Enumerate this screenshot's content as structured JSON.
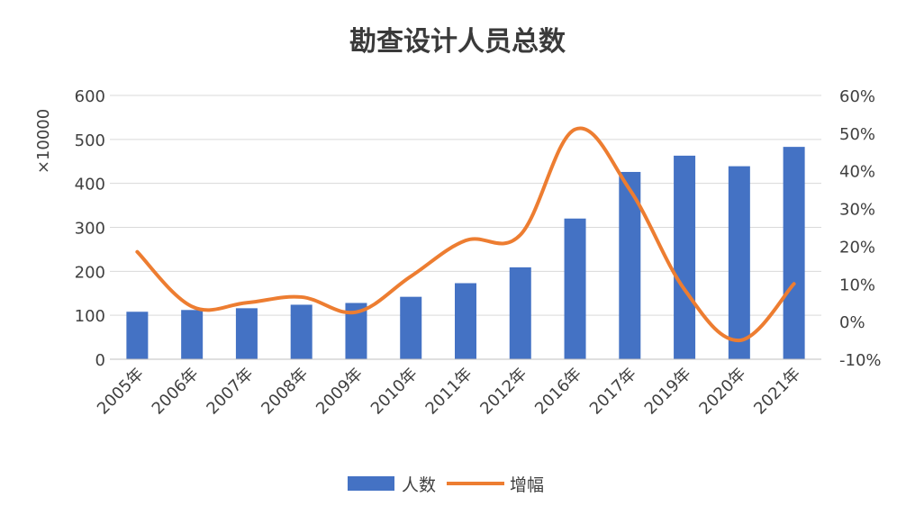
{
  "chart_data": {
    "type": "bar",
    "title": "勘查设计人员总数",
    "ylabel": "×10000",
    "categories": [
      "2005年",
      "2006年",
      "2007年",
      "2008年",
      "2009年",
      "2010年",
      "2011年",
      "2012年",
      "2016年",
      "2017年",
      "2019年",
      "2020年",
      "2021年"
    ],
    "series": [
      {
        "name": "人数",
        "type": "bar",
        "axis": "left",
        "color": "#4472c4",
        "values": [
          108,
          112,
          116,
          124,
          128,
          142,
          173,
          209,
          320,
          426,
          463,
          439,
          483
        ]
      },
      {
        "name": "增幅",
        "type": "line",
        "axis": "right",
        "color": "#ed7d31",
        "values": [
          18.5,
          4,
          5,
          6.5,
          2.5,
          12,
          21.5,
          23,
          51,
          35,
          8.5,
          -5,
          10
        ]
      }
    ],
    "ylim_left": [
      0,
      600
    ],
    "yticks_left": [
      "0",
      "100",
      "200",
      "300",
      "400",
      "500",
      "600"
    ],
    "ylim_right": [
      -10,
      60
    ],
    "yticks_right": [
      "-10%",
      "0%",
      "10%",
      "20%",
      "30%",
      "40%",
      "50%",
      "60%"
    ],
    "grid": true,
    "legend": "bottom"
  }
}
